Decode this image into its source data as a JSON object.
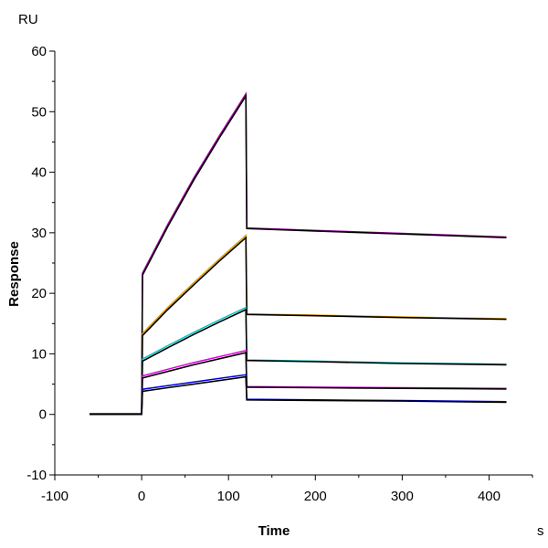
{
  "chart_data": {
    "type": "line",
    "title": "",
    "xlabel": "Time",
    "xunit": "s",
    "ylabel": "Response",
    "yunit": "RU",
    "xlim": [
      -100,
      450
    ],
    "ylim": [
      -10,
      60
    ],
    "xticks": [
      -100,
      0,
      100,
      200,
      300,
      400
    ],
    "yticks": [
      -10,
      0,
      10,
      20,
      30,
      40,
      50,
      60
    ],
    "grid": false,
    "legend": "none",
    "fit_color": "#000000",
    "series": [
      {
        "color": "#b000b0",
        "points": [
          [
            -60,
            0
          ],
          [
            0,
            0
          ],
          [
            1,
            23
          ],
          [
            30,
            31
          ],
          [
            60,
            38.7
          ],
          [
            90,
            45.8
          ],
          [
            120,
            52.6
          ],
          [
            121,
            30.7
          ],
          [
            200,
            30.3
          ],
          [
            300,
            29.8
          ],
          [
            420,
            29.2
          ]
        ]
      },
      {
        "color": "#e0a000",
        "points": [
          [
            -60,
            0
          ],
          [
            0,
            0
          ],
          [
            1,
            13
          ],
          [
            30,
            17.3
          ],
          [
            60,
            21.4
          ],
          [
            90,
            25.4
          ],
          [
            120,
            29.2
          ],
          [
            121,
            16.5
          ],
          [
            200,
            16.3
          ],
          [
            300,
            16
          ],
          [
            420,
            15.7
          ]
        ]
      },
      {
        "color": "#00c0c0",
        "points": [
          [
            -60,
            0
          ],
          [
            0,
            0
          ],
          [
            1,
            8.8
          ],
          [
            30,
            11
          ],
          [
            60,
            13.2
          ],
          [
            90,
            15.3
          ],
          [
            120,
            17.3
          ],
          [
            121,
            8.9
          ],
          [
            200,
            8.7
          ],
          [
            300,
            8.4
          ],
          [
            420,
            8.2
          ]
        ]
      },
      {
        "color": "#e000e0",
        "points": [
          [
            -60,
            0
          ],
          [
            0,
            0
          ],
          [
            1,
            6
          ],
          [
            30,
            7.1
          ],
          [
            60,
            8.2
          ],
          [
            90,
            9.2
          ],
          [
            120,
            10.2
          ],
          [
            121,
            4.5
          ],
          [
            200,
            4.4
          ],
          [
            300,
            4.3
          ],
          [
            420,
            4.2
          ]
        ]
      },
      {
        "color": "#0000e0",
        "points": [
          [
            -60,
            0
          ],
          [
            0,
            0
          ],
          [
            1,
            3.8
          ],
          [
            30,
            4.4
          ],
          [
            60,
            5.0
          ],
          [
            90,
            5.6
          ],
          [
            120,
            6.2
          ],
          [
            121,
            2.4
          ],
          [
            200,
            2.3
          ],
          [
            300,
            2.2
          ],
          [
            420,
            2.0
          ]
        ]
      }
    ]
  }
}
